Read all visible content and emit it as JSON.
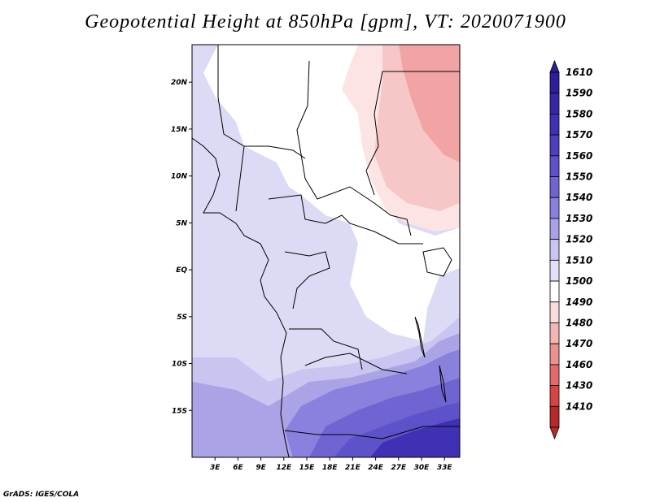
{
  "title": "Geopotential Height at 850hPa [gpm], VT: 2020071900",
  "credit": "GrADS: IGES/COLA",
  "chart_data": {
    "type": "heatmap",
    "variable": "Geopotential Height at 850hPa",
    "units": "gpm",
    "valid_time": "2020071900",
    "lon_range": [
      0,
      35
    ],
    "lat_range": [
      -20,
      24
    ],
    "x_ticks": [
      "3E",
      "6E",
      "9E",
      "12E",
      "15E",
      "18E",
      "21E",
      "24E",
      "27E",
      "30E",
      "33E"
    ],
    "x_tick_values": [
      3,
      6,
      9,
      12,
      15,
      18,
      21,
      24,
      27,
      30,
      33
    ],
    "y_ticks": [
      "20N",
      "15N",
      "10N",
      "5N",
      "EQ",
      "5S",
      "10S",
      "15S"
    ],
    "y_tick_values": [
      20,
      15,
      10,
      5,
      0,
      -5,
      -10,
      -15
    ],
    "colorbar": {
      "levels": [
        1610,
        1590,
        1580,
        1570,
        1560,
        1550,
        1540,
        1530,
        1520,
        1510,
        1500,
        1490,
        1480,
        1470,
        1460,
        1430,
        1410
      ],
      "colors": [
        "#2b1f9c",
        "#3527a8",
        "#4031b4",
        "#4d40bf",
        "#5d52c9",
        "#7064d3",
        "#8a80dd",
        "#a9a2e6",
        "#c9c6f0",
        "#e2e1f7",
        "#ffffff",
        "#fbdcdc",
        "#f4b5b5",
        "#ec9191",
        "#e26a6a",
        "#d64444",
        "#b82a2a"
      ]
    },
    "grid": false
  }
}
